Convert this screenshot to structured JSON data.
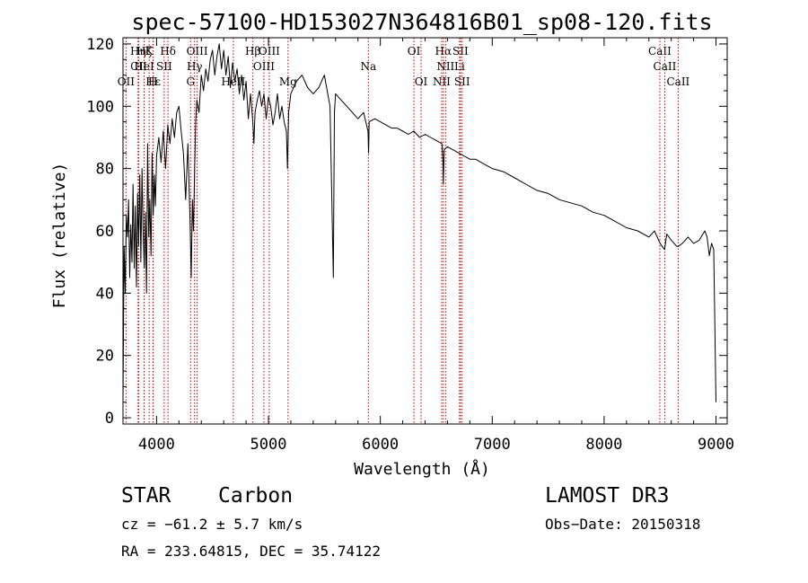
{
  "chart_data": {
    "type": "line",
    "title": "spec-57100-HD153027N364816B01_sp08-120.fits",
    "xlabel": "Wavelength (Å)",
    "ylabel": "Flux (relative)",
    "xlim": [
      3700,
      9100
    ],
    "ylim": [
      -2,
      122
    ],
    "xticks": [
      4000,
      5000,
      6000,
      7000,
      8000,
      9000
    ],
    "yticks": [
      0,
      20,
      40,
      60,
      80,
      100,
      120
    ],
    "series": [
      {
        "name": "flux",
        "x": [
          3700,
          3710,
          3720,
          3730,
          3740,
          3750,
          3760,
          3770,
          3780,
          3790,
          3800,
          3810,
          3820,
          3830,
          3840,
          3850,
          3860,
          3870,
          3880,
          3890,
          3900,
          3910,
          3920,
          3930,
          3940,
          3950,
          3960,
          3970,
          3980,
          3990,
          4000,
          4020,
          4040,
          4060,
          4080,
          4100,
          4120,
          4140,
          4160,
          4180,
          4200,
          4220,
          4240,
          4260,
          4280,
          4300,
          4310,
          4320,
          4330,
          4340,
          4350,
          4360,
          4380,
          4400,
          4420,
          4440,
          4460,
          4480,
          4500,
          4520,
          4540,
          4560,
          4580,
          4600,
          4620,
          4640,
          4660,
          4680,
          4700,
          4720,
          4740,
          4760,
          4780,
          4800,
          4820,
          4840,
          4860,
          4870,
          4880,
          4900,
          4920,
          4940,
          4960,
          4980,
          5000,
          5020,
          5040,
          5060,
          5080,
          5100,
          5120,
          5140,
          5160,
          5170,
          5175,
          5180,
          5200,
          5250,
          5300,
          5350,
          5400,
          5450,
          5500,
          5550,
          5580,
          5590,
          5600,
          5650,
          5700,
          5750,
          5800,
          5850,
          5890,
          5895,
          5900,
          5950,
          6000,
          6050,
          6100,
          6150,
          6200,
          6250,
          6300,
          6350,
          6400,
          6450,
          6500,
          6550,
          6560,
          6563,
          6570,
          6600,
          6650,
          6700,
          6750,
          6800,
          6850,
          6900,
          6950,
          7000,
          7100,
          7200,
          7300,
          7400,
          7500,
          7600,
          7700,
          7800,
          7900,
          8000,
          8100,
          8200,
          8300,
          8400,
          8450,
          8500,
          8540,
          8560,
          8600,
          8650,
          8662,
          8700,
          8750,
          8800,
          8850,
          8900,
          8920,
          8940,
          8960,
          8980,
          9000
        ],
        "y": [
          5,
          55,
          40,
          65,
          58,
          70,
          45,
          62,
          50,
          75,
          48,
          68,
          42,
          72,
          55,
          78,
          50,
          80,
          60,
          48,
          66,
          40,
          88,
          58,
          70,
          52,
          85,
          65,
          78,
          68,
          84,
          90,
          82,
          92,
          80,
          94,
          88,
          96,
          90,
          98,
          100,
          92,
          85,
          70,
          88,
          62,
          45,
          70,
          60,
          80,
          95,
          102,
          98,
          110,
          105,
          112,
          108,
          115,
          118,
          110,
          116,
          120,
          112,
          118,
          110,
          116,
          106,
          114,
          108,
          112,
          104,
          110,
          102,
          108,
          96,
          104,
          95,
          88,
          98,
          102,
          105,
          100,
          104,
          96,
          103,
          100,
          94,
          98,
          104,
          96,
          100,
          95,
          92,
          80,
          88,
          98,
          104,
          108,
          110,
          106,
          104,
          106,
          110,
          100,
          45,
          98,
          104,
          102,
          100,
          98,
          96,
          98,
          92,
          85,
          95,
          96,
          95,
          94,
          93,
          93,
          92,
          91,
          92,
          90,
          91,
          90,
          89,
          88,
          82,
          75,
          86,
          87,
          86,
          85,
          84,
          83,
          83,
          82,
          81,
          80,
          79,
          77,
          75,
          73,
          72,
          70,
          69,
          68,
          66,
          65,
          63,
          61,
          60,
          58,
          60,
          56,
          54,
          59,
          57,
          55,
          55,
          56,
          58,
          56,
          57,
          60,
          58,
          52,
          56,
          54,
          5
        ]
      }
    ],
    "lines": [
      {
        "name": "Hη",
        "wave": 3835,
        "row": 1
      },
      {
        "name": "CII",
        "wave": 3840,
        "row": 2
      },
      {
        "name": "OII",
        "wave": 3727,
        "row": 3
      },
      {
        "name": "Hζ",
        "wave": 3889,
        "row": 1
      },
      {
        "name": "HeI",
        "wave": 3889,
        "row": 2
      },
      {
        "name": "Hε",
        "wave": 3970,
        "row": 3
      },
      {
        "name": "K",
        "wave": 3934,
        "row": 1
      },
      {
        "name": "H",
        "wave": 3968,
        "row": 3
      },
      {
        "name": "Hδ",
        "wave": 4102,
        "row": 1
      },
      {
        "name": "SII",
        "wave": 4068,
        "row": 2
      },
      {
        "name": "OIII",
        "wave": 4363,
        "row": 1
      },
      {
        "name": "Hγ",
        "wave": 4340,
        "row": 2
      },
      {
        "name": "G",
        "wave": 4304,
        "row": 3
      },
      {
        "name": "Hβ",
        "wave": 4861,
        "row": 1
      },
      {
        "name": "OIII",
        "wave": 4959,
        "row": 2
      },
      {
        "name": "OIII",
        "wave": 5007,
        "row": 1
      },
      {
        "name": "HeII",
        "wave": 4686,
        "row": 3
      },
      {
        "name": "Mg",
        "wave": 5175,
        "row": 3
      },
      {
        "name": "Na",
        "wave": 5893,
        "row": 2
      },
      {
        "name": "OI",
        "wave": 6300,
        "row": 1
      },
      {
        "name": "OI",
        "wave": 6364,
        "row": 3
      },
      {
        "name": "Hα",
        "wave": 6563,
        "row": 1
      },
      {
        "name": "NII",
        "wave": 6583,
        "row": 2
      },
      {
        "name": "NII",
        "wave": 6548,
        "row": 3
      },
      {
        "name": "SII",
        "wave": 6716,
        "row": 1
      },
      {
        "name": "Li",
        "wave": 6708,
        "row": 2
      },
      {
        "name": "SII",
        "wave": 6731,
        "row": 3
      },
      {
        "name": "CaII",
        "wave": 8498,
        "row": 1
      },
      {
        "name": "CaII",
        "wave": 8542,
        "row": 2
      },
      {
        "name": "CaII",
        "wave": 8662,
        "row": 3
      }
    ]
  },
  "info": {
    "class_label": "STAR",
    "subclass": "Carbon",
    "survey": "LAMOST DR3",
    "cz": "cz = −61.2 ± 5.7 km/s",
    "obs_date": "Obs−Date: 20150318",
    "radec": "RA = 233.64815, DEC =  35.74122"
  }
}
